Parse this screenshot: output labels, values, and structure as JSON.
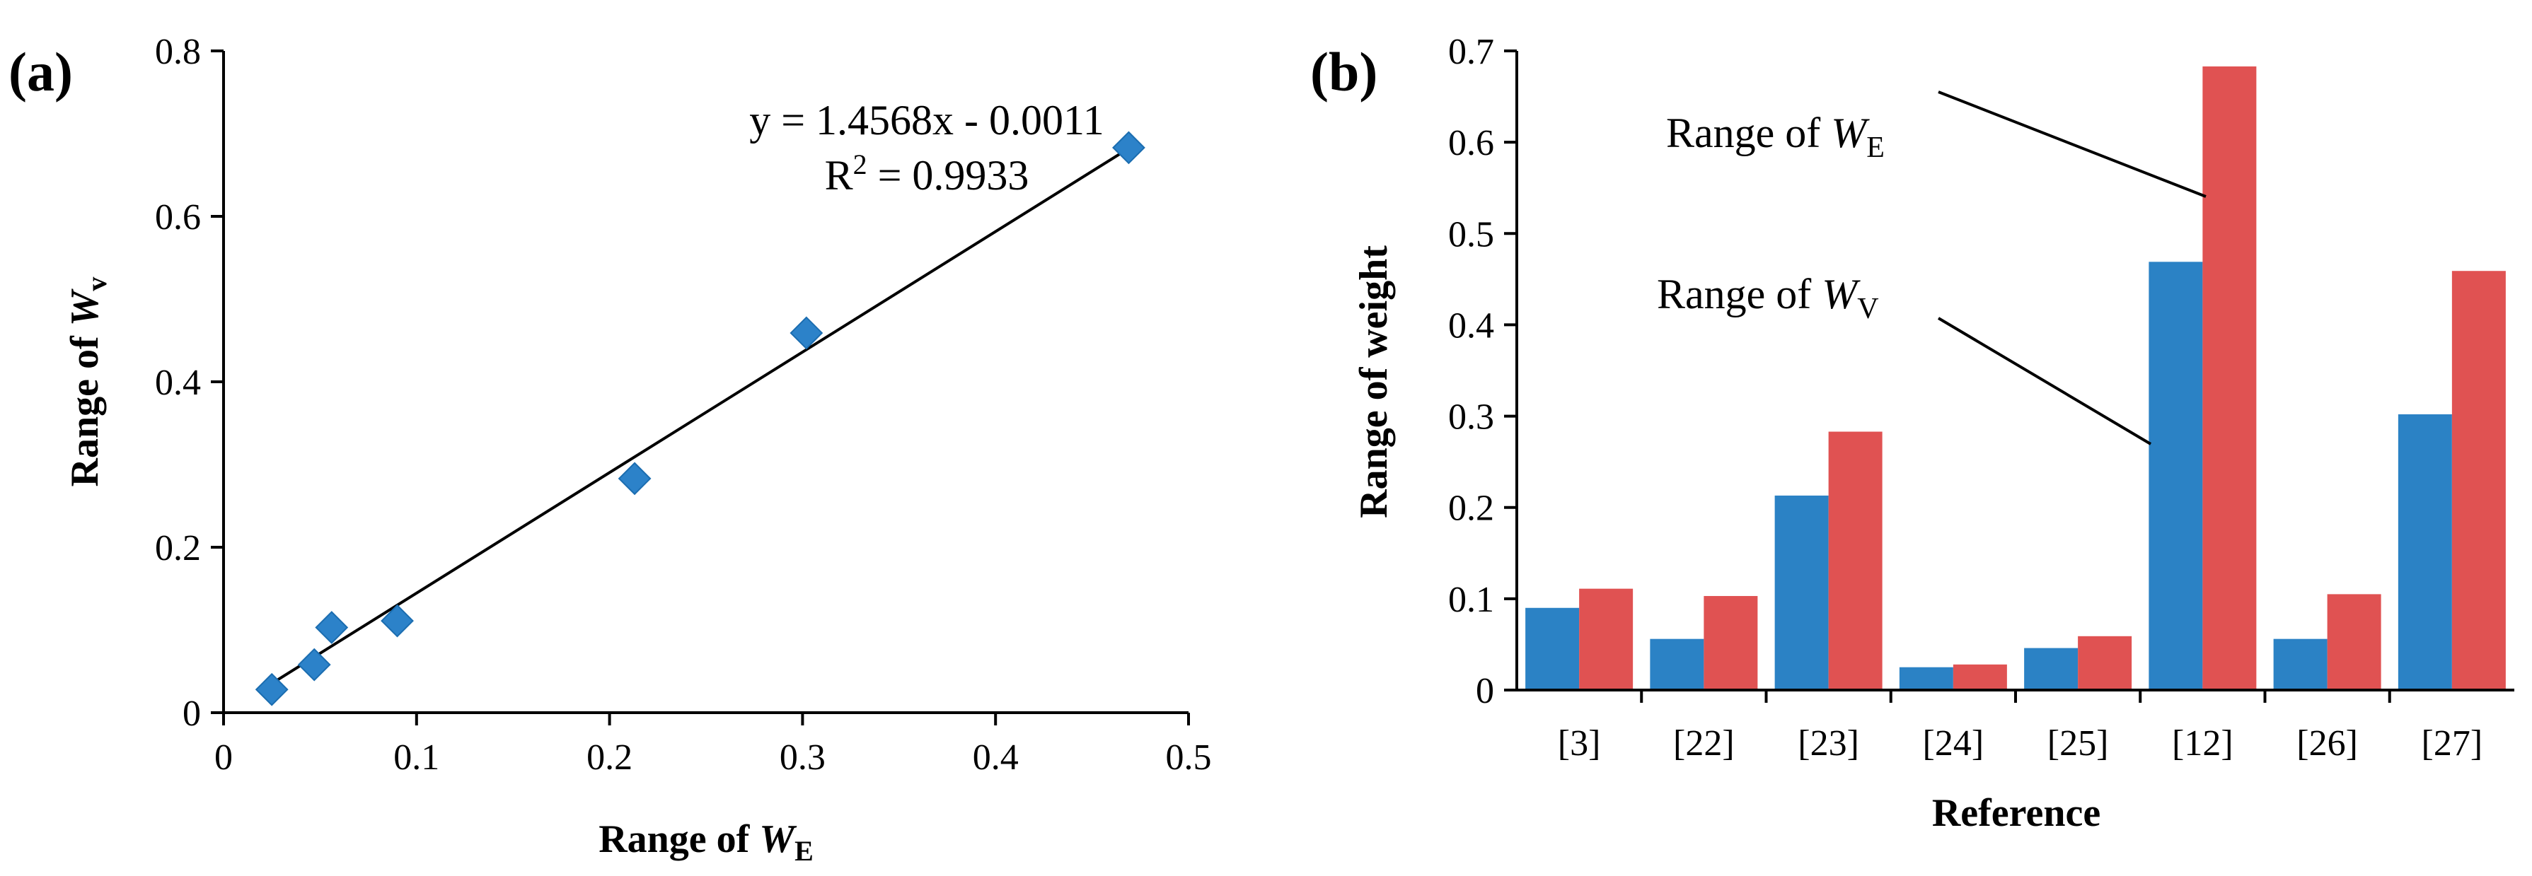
{
  "chart_data": [
    {
      "type": "scatter",
      "panel_label": "(a)",
      "xlabel": "Range of ",
      "xlabel_var": "W",
      "xlabel_sub": "E",
      "ylabel": "Range of ",
      "ylabel_var": "W",
      "ylabel_sub": "v",
      "xlim": [
        0,
        0.5
      ],
      "ylim": [
        0,
        0.8
      ],
      "xticks": [
        0,
        0.1,
        0.2,
        0.3,
        0.4,
        0.5
      ],
      "xtick_labels": [
        "0",
        "0.1",
        "0.2",
        "0.3",
        "0.4",
        "0.5"
      ],
      "yticks": [
        0,
        0.2,
        0.4,
        0.6,
        0.8
      ],
      "ytick_labels": [
        "0",
        "0.2",
        "0.4",
        "0.6",
        "0.8"
      ],
      "x": [
        0.025,
        0.047,
        0.056,
        0.09,
        0.213,
        0.302,
        0.469
      ],
      "y": [
        0.028,
        0.058,
        0.103,
        0.111,
        0.283,
        0.459,
        0.683
      ],
      "marker_color": "#2C82C9",
      "trendline": {
        "slope": 1.4568,
        "intercept": -0.0011,
        "x_range": [
          0.025,
          0.469
        ]
      },
      "equation_text": "y = 1.4568x - 0.0011",
      "r2_prefix": "R",
      "r2_sup": "2",
      "r2_suffix": " = 0.9933"
    },
    {
      "type": "bar",
      "panel_label": "(b)",
      "xlabel": "Reference",
      "ylabel": "Range of weight",
      "ylim": [
        0,
        0.7
      ],
      "yticks": [
        0,
        0.1,
        0.2,
        0.3,
        0.4,
        0.5,
        0.6,
        0.7
      ],
      "ytick_labels": [
        "0",
        "0.1",
        "0.2",
        "0.3",
        "0.4",
        "0.5",
        "0.6",
        "0.7"
      ],
      "categories": [
        "[3]",
        "[22]",
        "[23]",
        "[24]",
        "[25]",
        "[12]",
        "[26]",
        "[27]"
      ],
      "series": [
        {
          "name": "W_V",
          "color": "#2B82C5",
          "values": [
            0.09,
            0.056,
            0.213,
            0.025,
            0.046,
            0.469,
            0.056,
            0.302
          ]
        },
        {
          "name": "W_E",
          "color": "#E05252",
          "values": [
            0.111,
            0.103,
            0.283,
            0.028,
            0.059,
            0.683,
            0.105,
            0.459
          ]
        }
      ],
      "annotations": [
        {
          "text": "Range of ",
          "var": "W",
          "sub": "E",
          "series": "W_E"
        },
        {
          "text": "Range of ",
          "var": "W",
          "sub": "V",
          "series": "W_V"
        }
      ]
    }
  ]
}
